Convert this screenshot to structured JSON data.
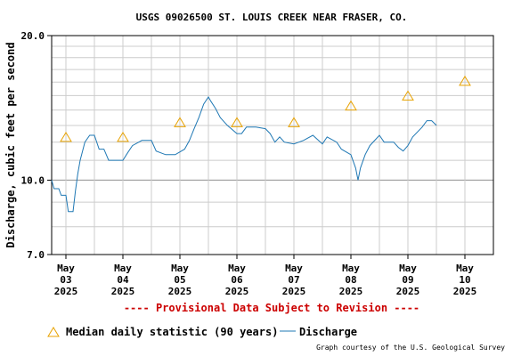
{
  "chart_data": {
    "type": "line",
    "title": "USGS 09026500 ST. LOUIS CREEK NEAR FRASER, CO.",
    "ylabel": "Discharge, cubic feet per second",
    "y_scale": "log",
    "ylim": [
      7.0,
      20.0
    ],
    "y_ticks": [
      "20.0",
      "10.0",
      "7.0"
    ],
    "x_range": [
      "2025-05-02 18:00",
      "2025-05-10 12:00"
    ],
    "x_tick_labels": [
      {
        "month": "May",
        "day": "03",
        "year": "2025"
      },
      {
        "month": "May",
        "day": "04",
        "year": "2025"
      },
      {
        "month": "May",
        "day": "05",
        "year": "2025"
      },
      {
        "month": "May",
        "day": "06",
        "year": "2025"
      },
      {
        "month": "May",
        "day": "07",
        "year": "2025"
      },
      {
        "month": "May",
        "day": "08",
        "year": "2025"
      },
      {
        "month": "May",
        "day": "09",
        "year": "2025"
      },
      {
        "month": "May",
        "day": "10",
        "year": "2025"
      }
    ],
    "grid": true,
    "series": [
      {
        "name": "Discharge",
        "color": "#1f78b4",
        "points": [
          [
            "2025-05-02 18:00",
            10.0
          ],
          [
            "2025-05-02 19:00",
            9.6
          ],
          [
            "2025-05-02 21:00",
            9.6
          ],
          [
            "2025-05-02 22:00",
            9.3
          ],
          [
            "2025-05-03 00:00",
            9.3
          ],
          [
            "2025-05-03 01:00",
            8.6
          ],
          [
            "2025-05-03 03:00",
            8.6
          ],
          [
            "2025-05-03 04:00",
            9.5
          ],
          [
            "2025-05-03 05:00",
            10.3
          ],
          [
            "2025-05-03 06:00",
            11.0
          ],
          [
            "2025-05-03 08:00",
            12.0
          ],
          [
            "2025-05-03 10:00",
            12.4
          ],
          [
            "2025-05-03 12:00",
            12.4
          ],
          [
            "2025-05-03 14:00",
            11.6
          ],
          [
            "2025-05-03 16:00",
            11.6
          ],
          [
            "2025-05-03 18:00",
            11.0
          ],
          [
            "2025-05-03 20:00",
            11.0
          ],
          [
            "2025-05-04 00:00",
            11.0
          ],
          [
            "2025-05-04 02:00",
            11.4
          ],
          [
            "2025-05-04 04:00",
            11.8
          ],
          [
            "2025-05-04 08:00",
            12.1
          ],
          [
            "2025-05-04 12:00",
            12.1
          ],
          [
            "2025-05-04 14:00",
            11.5
          ],
          [
            "2025-05-04 18:00",
            11.3
          ],
          [
            "2025-05-04 22:00",
            11.3
          ],
          [
            "2025-05-05 02:00",
            11.6
          ],
          [
            "2025-05-05 04:00",
            12.1
          ],
          [
            "2025-05-05 06:00",
            12.8
          ],
          [
            "2025-05-05 08:00",
            13.5
          ],
          [
            "2025-05-05 10:00",
            14.4
          ],
          [
            "2025-05-05 12:00",
            14.9
          ],
          [
            "2025-05-05 13:00",
            14.6
          ],
          [
            "2025-05-05 15:00",
            14.1
          ],
          [
            "2025-05-05 17:00",
            13.5
          ],
          [
            "2025-05-05 20:00",
            13.0
          ],
          [
            "2025-05-06 00:00",
            12.5
          ],
          [
            "2025-05-06 02:00",
            12.5
          ],
          [
            "2025-05-06 04:00",
            12.9
          ],
          [
            "2025-05-06 08:00",
            12.9
          ],
          [
            "2025-05-06 12:00",
            12.8
          ],
          [
            "2025-05-06 14:00",
            12.5
          ],
          [
            "2025-05-06 16:00",
            12.0
          ],
          [
            "2025-05-06 18:00",
            12.3
          ],
          [
            "2025-05-06 20:00",
            12.0
          ],
          [
            "2025-05-07 00:00",
            11.9
          ],
          [
            "2025-05-07 04:00",
            12.1
          ],
          [
            "2025-05-07 08:00",
            12.4
          ],
          [
            "2025-05-07 12:00",
            11.9
          ],
          [
            "2025-05-07 14:00",
            12.3
          ],
          [
            "2025-05-07 18:00",
            12.0
          ],
          [
            "2025-05-07 20:00",
            11.6
          ],
          [
            "2025-05-08 00:00",
            11.3
          ],
          [
            "2025-05-08 02:00",
            10.6
          ],
          [
            "2025-05-08 03:00",
            10.0
          ],
          [
            "2025-05-08 04:00",
            10.6
          ],
          [
            "2025-05-08 06:00",
            11.3
          ],
          [
            "2025-05-08 08:00",
            11.8
          ],
          [
            "2025-05-08 12:00",
            12.4
          ],
          [
            "2025-05-08 14:00",
            12.0
          ],
          [
            "2025-05-08 18:00",
            12.0
          ],
          [
            "2025-05-08 20:00",
            11.7
          ],
          [
            "2025-05-08 22:00",
            11.5
          ],
          [
            "2025-05-09 00:00",
            11.8
          ],
          [
            "2025-05-09 02:00",
            12.3
          ],
          [
            "2025-05-09 06:00",
            12.9
          ],
          [
            "2025-05-09 08:00",
            13.3
          ],
          [
            "2025-05-09 10:00",
            13.3
          ],
          [
            "2025-05-09 12:00",
            13.0
          ]
        ]
      },
      {
        "name": "Median daily statistic (90 years)",
        "color": "#e8a200",
        "marker": "triangle",
        "points": [
          [
            "2025-05-03 00:00",
            12.3
          ],
          [
            "2025-05-04 00:00",
            12.3
          ],
          [
            "2025-05-05 00:00",
            13.2
          ],
          [
            "2025-05-06 00:00",
            13.2
          ],
          [
            "2025-05-07 00:00",
            13.2
          ],
          [
            "2025-05-08 00:00",
            14.3
          ],
          [
            "2025-05-09 00:00",
            15.0
          ],
          [
            "2025-05-10 00:00",
            16.1
          ]
        ]
      }
    ]
  },
  "provisional_note": "---- Provisional Data Subject to Revision ----",
  "provisional_color": "#cc0000",
  "legend": {
    "median_label": "Median daily statistic (90 years)",
    "discharge_label": "Discharge"
  },
  "credit": "Graph courtesy of the U.S. Geological Survey"
}
